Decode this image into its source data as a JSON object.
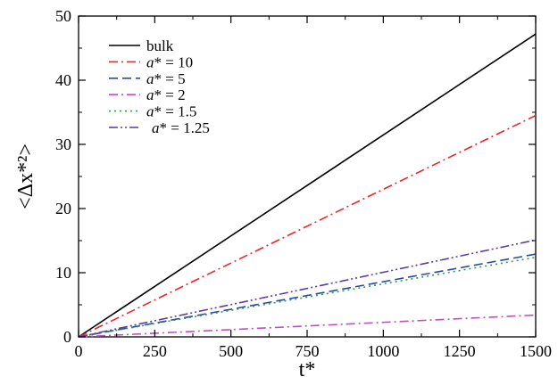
{
  "chart_data": {
    "type": "line",
    "xlabel": "t*",
    "ylabel": "<Δx*²>",
    "xlim": [
      0,
      1500
    ],
    "ylim": [
      0,
      50
    ],
    "xticks": [
      0,
      250,
      500,
      750,
      1000,
      1250,
      1500
    ],
    "yticks": [
      0,
      10,
      20,
      30,
      40,
      50
    ],
    "grid": false,
    "legend_position": "top-left",
    "series": [
      {
        "name": "bulk",
        "prefix": "",
        "value_text": "",
        "color": "#000000",
        "style": "solid",
        "x": [
          0,
          1500
        ],
        "y": [
          0,
          47.2
        ]
      },
      {
        "name": "a* = 10",
        "prefix": "a*",
        "value_text": " = 10",
        "color": "#e8262b",
        "style": "dashdot",
        "x": [
          0,
          1500
        ],
        "y": [
          0,
          34.5
        ]
      },
      {
        "name": "a* = 5",
        "prefix": "a*",
        "value_text": " = 5",
        "color": "#2b4a9b",
        "style": "dashed",
        "x": [
          0,
          1500
        ],
        "y": [
          0,
          12.9
        ]
      },
      {
        "name": "a* = 2",
        "prefix": "a*",
        "value_text": " = 2",
        "color": "#c04fbf",
        "style": "dashdot",
        "x": [
          0,
          1500
        ],
        "y": [
          0,
          3.4
        ]
      },
      {
        "name": "a* = 1.5",
        "prefix": "a*",
        "value_text": " = 1.5",
        "color": "#2a9e4a",
        "style": "dotted",
        "x": [
          0,
          1500
        ],
        "y": [
          0,
          12.4
        ]
      },
      {
        "name": "a* = 1.25",
        "prefix": "a*",
        "value_text": " = 1.25",
        "color": "#5b3f9a",
        "style": "dashdotdot",
        "x": [
          0,
          1500
        ],
        "y": [
          0,
          15.1
        ]
      }
    ]
  }
}
